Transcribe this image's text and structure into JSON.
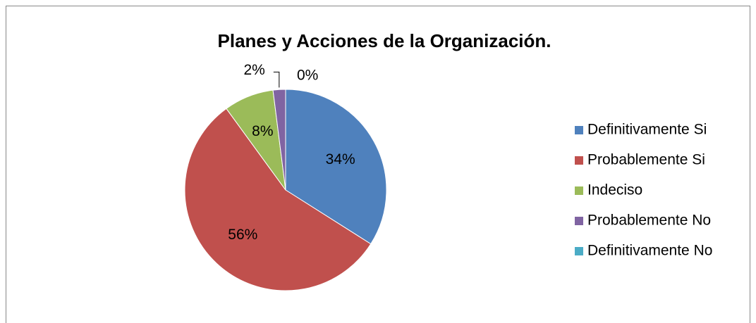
{
  "chart_data": {
    "type": "pie",
    "title": "Planes y Acciones de la Organización.",
    "categories": [
      "Definitivamente Si",
      "Probablemente Si",
      "Indeciso",
      "Probablemente No",
      "Definitivamente No"
    ],
    "values": [
      34,
      56,
      8,
      2,
      0
    ],
    "value_labels": [
      "34%",
      "56%",
      "8%",
      "2%",
      "0%"
    ],
    "colors": [
      "#4f81bd",
      "#c0504d",
      "#9bbb59",
      "#8064a2",
      "#4bacc6"
    ],
    "legend": "right"
  }
}
